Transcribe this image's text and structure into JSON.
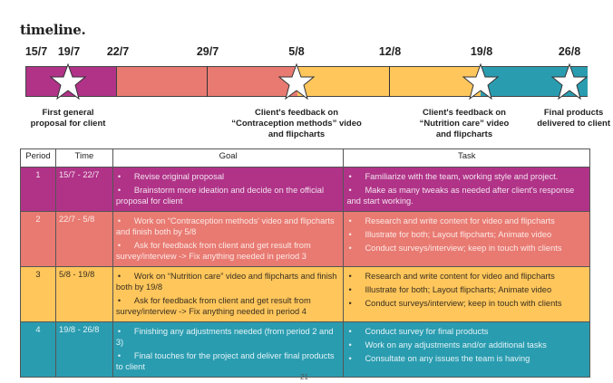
{
  "title": "timeline.",
  "colors": {
    "purple": "#b03388",
    "salmon": "#e87a72",
    "yellow": "#fec65b",
    "teal": "#2a9cb0"
  },
  "timeline": {
    "dates": [
      "15/7",
      "19/7",
      "22/7",
      "29/7",
      "5/8",
      "12/8",
      "19/8",
      "26/8"
    ],
    "milestones": [
      {
        "icon": "star-icon",
        "caption_lines": [
          "First general",
          "proposal for client"
        ]
      },
      {
        "icon": "star-icon",
        "caption_lines": [
          "Client's feedback on",
          "“Contraception methods” video",
          "and flipcharts"
        ]
      },
      {
        "icon": "star-icon",
        "caption_lines": [
          "Client's feedback on",
          "“Nutrition care” video",
          "and flipcharts"
        ]
      },
      {
        "icon": "star-icon",
        "caption_lines": [
          "Final products",
          "delivered to client"
        ]
      }
    ]
  },
  "table": {
    "headers": [
      "Period",
      "Time",
      "Goal",
      "Task"
    ],
    "rows": [
      {
        "period": "1",
        "time": "15/7 - 22/7",
        "goals": [
          "Revise original proposal",
          "Brainstorm more ideation and decide on the official proposal for client"
        ],
        "tasks": [
          "Familiarize with the team, working style and project.",
          "Make as many tweaks as needed after client's response and start working."
        ]
      },
      {
        "period": "2",
        "time": "22/7 - 5/8",
        "goals": [
          "Work on “Contraception methods' video and flipcharts and finish both by 5/8",
          "Ask for feedback from client and get result from survey/interview -> Fix anything needed in period 3"
        ],
        "tasks": [
          "Research and write content for video and flipcharts",
          "Illustrate for both; Layout flipcharts; Animate video",
          "Conduct surveys/interview; keep in touch with clients"
        ]
      },
      {
        "period": "3",
        "time": "5/8 - 19/8",
        "goals": [
          "Work on “Nutrition care” video and flipcharts and finish both by 19/8",
          "Ask for feedback from client and get result from survey/interview -> Fix anything needed in period 4"
        ],
        "tasks": [
          "Research and write content for video and flipcharts",
          "Illustrate for both; Layout flipcharts; Animate video",
          "Conduct surveys/interview; keep in touch with clients"
        ]
      },
      {
        "period": "4",
        "time": "19/8 - 26/8",
        "goals": [
          "Finishing any adjustments needed (from period 2 and 3)",
          "Final touches for the project and deliver final products to client"
        ],
        "tasks": [
          "Conduct survey for final products",
          "Work on any adjustments and/or additional tasks",
          "Consultate on any issues the team is having"
        ]
      }
    ]
  },
  "page_number": "21"
}
